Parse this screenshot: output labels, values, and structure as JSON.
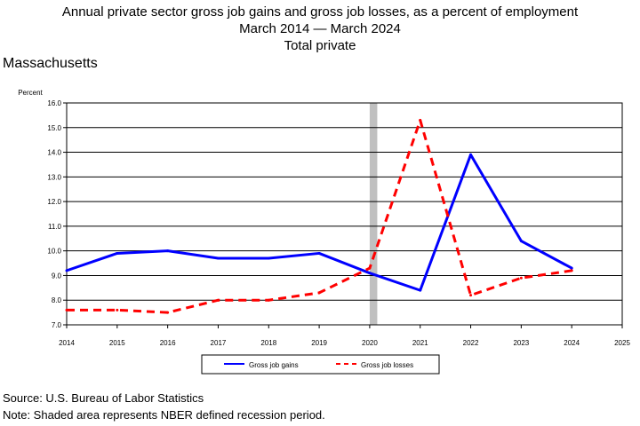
{
  "header": {
    "title_line1": "Annual private sector gross job gains and gross job losses, as a percent of employment",
    "title_line2": "March 2014 — March 2024",
    "title_line3": "Total private",
    "region": "Massachusetts"
  },
  "footer": {
    "source": "Source: U.S. Bureau of Labor Statistics",
    "note": "Note: Shaded area represents NBER defined recession period."
  },
  "chart_data": {
    "type": "line",
    "title": "Annual private sector gross job gains and gross job losses, as a percent of employment",
    "subtitle": "March 2014 — March 2024",
    "ylabel": "Percent",
    "xlabel": "",
    "x_ticks": [
      "2014",
      "2015",
      "2016",
      "2017",
      "2018",
      "2019",
      "2020",
      "2021",
      "2022",
      "2023",
      "2024",
      "2025"
    ],
    "y_ticks": [
      "7.0",
      "8.0",
      "9.0",
      "10.0",
      "11.0",
      "12.0",
      "13.0",
      "14.0",
      "15.0",
      "16.0"
    ],
    "xlim": [
      2014,
      2025
    ],
    "ylim": [
      7.0,
      16.0
    ],
    "grid": "horizontal",
    "legend_position": "bottom",
    "recession_shading": [
      2020.0,
      2020.15
    ],
    "recession_color": "#c0c0c0",
    "series": [
      {
        "name": "Gross job gains",
        "style": "solid",
        "color": "#0000ff",
        "x": [
          2014,
          2015,
          2016,
          2017,
          2018,
          2019,
          2020,
          2021,
          2022,
          2023,
          2024
        ],
        "values": [
          9.2,
          9.9,
          10.0,
          9.7,
          9.7,
          9.9,
          9.1,
          8.4,
          13.9,
          10.4,
          9.3
        ]
      },
      {
        "name": "Gross job losses",
        "style": "dashed",
        "color": "#ff0000",
        "x": [
          2014,
          2015,
          2016,
          2017,
          2018,
          2019,
          2020,
          2021,
          2022,
          2023,
          2024
        ],
        "values": [
          7.6,
          7.6,
          7.5,
          8.0,
          8.0,
          8.3,
          9.3,
          15.3,
          8.2,
          8.9,
          9.2
        ]
      }
    ]
  }
}
